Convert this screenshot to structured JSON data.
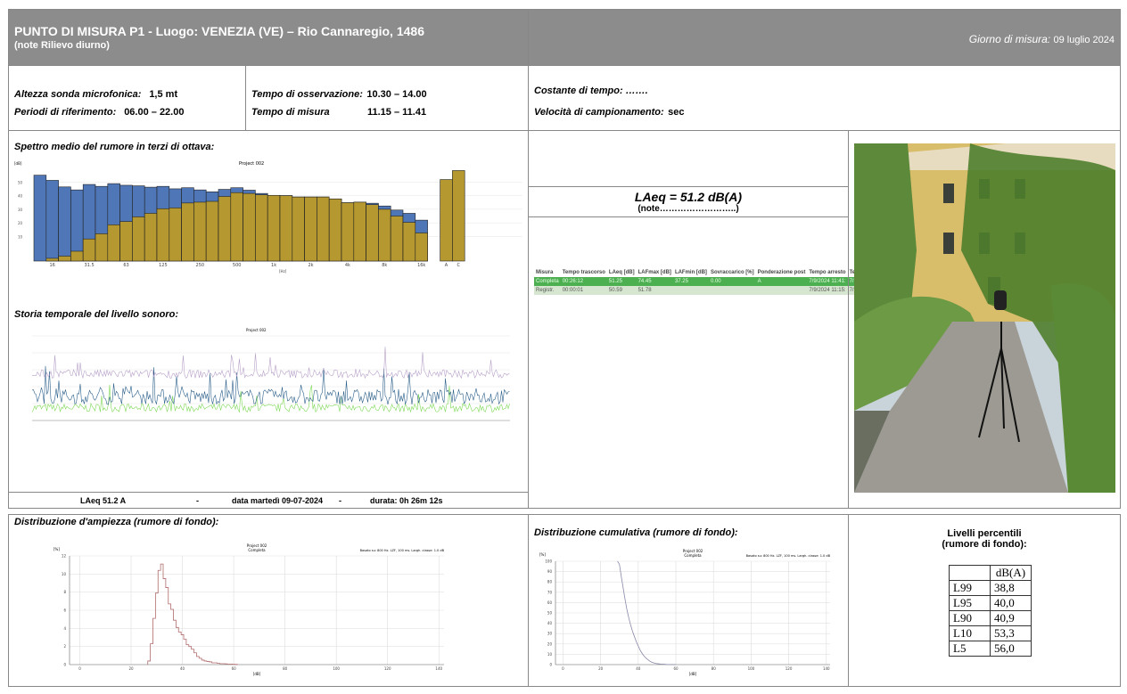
{
  "header": {
    "title": "PUNTO DI MISURA P1 - Luogo:  VENEZIA (VE) –  Rio Cannaregio, 1486",
    "subtitle": "(note Rilievo diurno)",
    "day_label": "Giorno di misura:",
    "day_value": "09 luglio 2024"
  },
  "info": {
    "altezza_label": "Altezza sonda microfonica:",
    "altezza_value": "1,5 mt",
    "periodi_label": "Periodi di riferimento:",
    "periodi_value": "06.00 – 22.00",
    "osservazione_label": "Tempo di osservazione:",
    "osservazione_value": "10.30 – 14.00",
    "misura_label": "Tempo di misura",
    "misura_value": "11.15 – 11.41",
    "costante_label": "Costante di tempo: …….",
    "velocita_label": "Velocità di campionamento:",
    "velocita_value": "sec"
  },
  "spectrum_title": "Spettro medio del rumore in terzi di ottava:",
  "history_title": "Storia temporale del livello sonoro:",
  "summary": {
    "laeq": "LAeq 51.2 A",
    "sep1": "-",
    "data": "data martedì 09-07-2024",
    "sep2": "-",
    "durata": "durata: 0h 26m 12s"
  },
  "laeq": {
    "value": "LAeq = 51.2 dB(A)",
    "note": "(note……………………..)"
  },
  "measure_table": {
    "headers": [
      "Misura",
      "Tempo trascorso",
      "LAeq [dB]",
      "LAFmax [dB]",
      "LAFmin [dB]",
      "Sovraccarico [%]",
      "Ponderazione post",
      "Tempo arresto",
      "Tempo avvio"
    ],
    "rows": [
      [
        "Completa",
        "00:26:12",
        "51.25",
        "74.45",
        "37.25",
        "0.00",
        "A",
        "7/9/2024 11:41:",
        "7/9/2024 11:1"
      ],
      [
        "Registr.",
        "00:00:01",
        "50.59",
        "51.78",
        "",
        "",
        "",
        "7/9/2024 11:15:",
        "7/9/2024 11:1"
      ]
    ]
  },
  "amp_title": "Distribuzione d'ampiezza (rumore di fondo):",
  "cum_title": "Distribuzione cumulativa (rumore di fondo):",
  "percentili": {
    "title1": "Livelli percentili",
    "title2": "(rumore di fondo):",
    "unit": "dB(A)",
    "rows": [
      [
        "L99",
        "38,8"
      ],
      [
        "L95",
        "40,0"
      ],
      [
        "L90",
        "40,9"
      ],
      [
        "L10",
        "53,3"
      ],
      [
        "L5",
        "56,0"
      ]
    ]
  },
  "colors": {
    "header": "#8c8c8c",
    "blue": "#4f77b8",
    "gold": "#b5982f",
    "green": "#4caf50"
  },
  "chart_data": [
    {
      "type": "bar",
      "title": "Project 002",
      "subtitle": "Completa",
      "ylabel": "[dB]",
      "xlabel": "[Hz]",
      "ylim": [
        -8,
        60
      ],
      "categories": [
        "12.5",
        "16",
        "20",
        "25",
        "31.5",
        "40",
        "50",
        "63",
        "80",
        "100",
        "125",
        "160",
        "200",
        "250",
        "315",
        "400",
        "500",
        "630",
        "800",
        "1k",
        "1.25k",
        "1.6k",
        "2k",
        "2.5k",
        "3.15k",
        "4k",
        "5k",
        "6.3k",
        "8k",
        "10k",
        "12.5k",
        "16k",
        "A",
        "C"
      ],
      "tick_labels": [
        "16",
        "31.5",
        "63",
        "125",
        "250",
        "500",
        "1k",
        "2k",
        "4k",
        "8k",
        "16k",
        "A",
        "C"
      ],
      "yticks": [
        "10",
        "20",
        "30",
        "40",
        "50"
      ],
      "series": [
        {
          "name": "Max",
          "values": [
            55,
            51.2,
            46.4,
            44.2,
            48.2,
            46.8,
            48.8,
            47.6,
            47.2,
            46.2,
            46.8,
            45,
            45.8,
            44.2,
            42.8,
            44.6,
            45.8,
            44,
            41.6,
            40.2,
            40,
            39,
            39,
            39,
            37.6,
            34.8,
            35.2,
            34.4,
            32.4,
            29.4,
            27,
            22,
            null,
            null
          ]
        },
        {
          "name": "Leq",
          "values": [
            null,
            -6,
            -4.4,
            -0.8,
            8.2,
            12,
            18.6,
            21,
            24.4,
            27,
            30.4,
            31,
            34.6,
            35.2,
            35.8,
            39.4,
            42.2,
            41.6,
            40.6,
            40.2,
            40,
            39,
            39,
            39,
            37.6,
            34.8,
            35.2,
            33.4,
            30,
            25,
            20.4,
            12.6,
            51.8,
            58.4
          ]
        }
      ]
    },
    {
      "type": "line",
      "title": "Project 002",
      "ylim": [
        0,
        100
      ],
      "xlabel": "time",
      "series": [
        {
          "name": "LAFmax"
        },
        {
          "name": "LAeq"
        },
        {
          "name": "LAFmin"
        }
      ]
    },
    {
      "type": "bar",
      "title": "Project 002",
      "subtitle": "Completa",
      "note": "Basato su: 800 Hz. LZF, 100 ms. Largh. classe: 1.0 dB",
      "ylabel": "[%]",
      "xlabel": "[dB]",
      "xlim": [
        -4,
        142
      ],
      "ylim": [
        0,
        12
      ],
      "xticks": [
        "0",
        "20",
        "40",
        "60",
        "80",
        "100",
        "120",
        "140"
      ],
      "yticks": [
        "0",
        "2",
        "4",
        "6",
        "8",
        "10",
        "12"
      ],
      "x": [
        27,
        28,
        29,
        30,
        31,
        32,
        33,
        34,
        35,
        36,
        37,
        38,
        39,
        40,
        41,
        42,
        43,
        44,
        45,
        46,
        47,
        48,
        49,
        50,
        51,
        52,
        53,
        54,
        55,
        56,
        57,
        58,
        59,
        60,
        61
      ],
      "values": [
        0.4,
        2.3,
        5.1,
        7.9,
        10.4,
        11.1,
        9.5,
        8.5,
        6.7,
        6.1,
        4.9,
        4.1,
        3.6,
        3.3,
        2.8,
        2.2,
        2.0,
        1.7,
        1.3,
        0.9,
        0.7,
        0.5,
        0.4,
        0.35,
        0.3,
        0.2,
        0.2,
        0.15,
        0.1,
        0.1,
        0.08,
        0.05,
        0.05,
        0.03,
        0.02
      ]
    },
    {
      "type": "line",
      "title": "Project 002",
      "subtitle": "Completa",
      "note": "Basato su: 800 Hz. LZF, 100 ms. Largh. classe: 1.0 dB",
      "ylabel": "[%]",
      "xlabel": "[dB]",
      "xlim": [
        -4,
        142
      ],
      "ylim": [
        0,
        100
      ],
      "xticks": [
        "0",
        "20",
        "40",
        "60",
        "80",
        "100",
        "120",
        "140"
      ],
      "yticks": [
        "0",
        "10",
        "20",
        "30",
        "40",
        "50",
        "60",
        "70",
        "80",
        "90",
        "100"
      ],
      "x": [
        29,
        30,
        31,
        32,
        33,
        34,
        35,
        36,
        37,
        38,
        39,
        40,
        41,
        42,
        43,
        44,
        45,
        46,
        47,
        48,
        49,
        50,
        52,
        55,
        60
      ],
      "values": [
        100,
        97,
        85,
        74,
        63,
        53,
        45,
        38,
        32,
        27,
        22,
        18,
        14,
        11,
        8.5,
        6.5,
        5,
        3.5,
        2.5,
        1.8,
        1.3,
        0.9,
        0.5,
        0.2,
        0
      ]
    }
  ]
}
